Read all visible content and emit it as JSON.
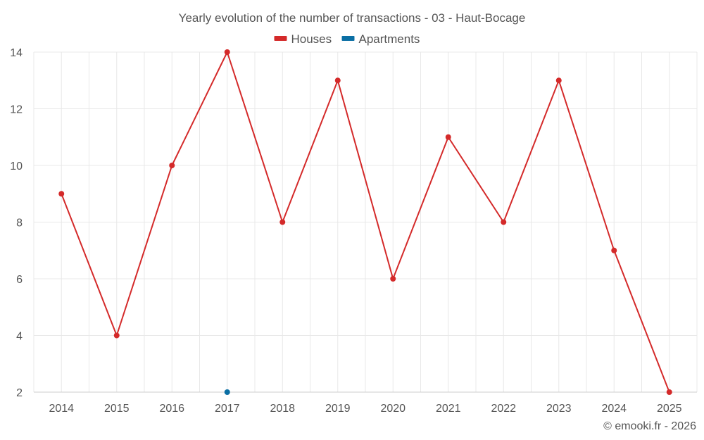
{
  "chart_data": {
    "type": "line",
    "title": "Yearly evolution of the number of transactions - 03 - Haut-Bocage",
    "categories": [
      "2014",
      "2015",
      "2016",
      "2017",
      "2018",
      "2019",
      "2020",
      "2021",
      "2022",
      "2023",
      "2024",
      "2025"
    ],
    "series": [
      {
        "name": "Houses",
        "color": "#d42a2a",
        "values": [
          9,
          4,
          10,
          14,
          8,
          13,
          6,
          11,
          8,
          13,
          7,
          2
        ]
      },
      {
        "name": "Apartments",
        "color": "#0b6fa4",
        "values": [
          null,
          null,
          null,
          2,
          null,
          null,
          null,
          null,
          null,
          null,
          null,
          null
        ]
      }
    ],
    "ylim": [
      2,
      14
    ],
    "yticks": [
      2,
      4,
      6,
      8,
      10,
      12,
      14
    ],
    "xlabel": "",
    "ylabel": "",
    "grid": true,
    "legend_position": "top-center"
  },
  "credit": "© emooki.fr - 2026"
}
